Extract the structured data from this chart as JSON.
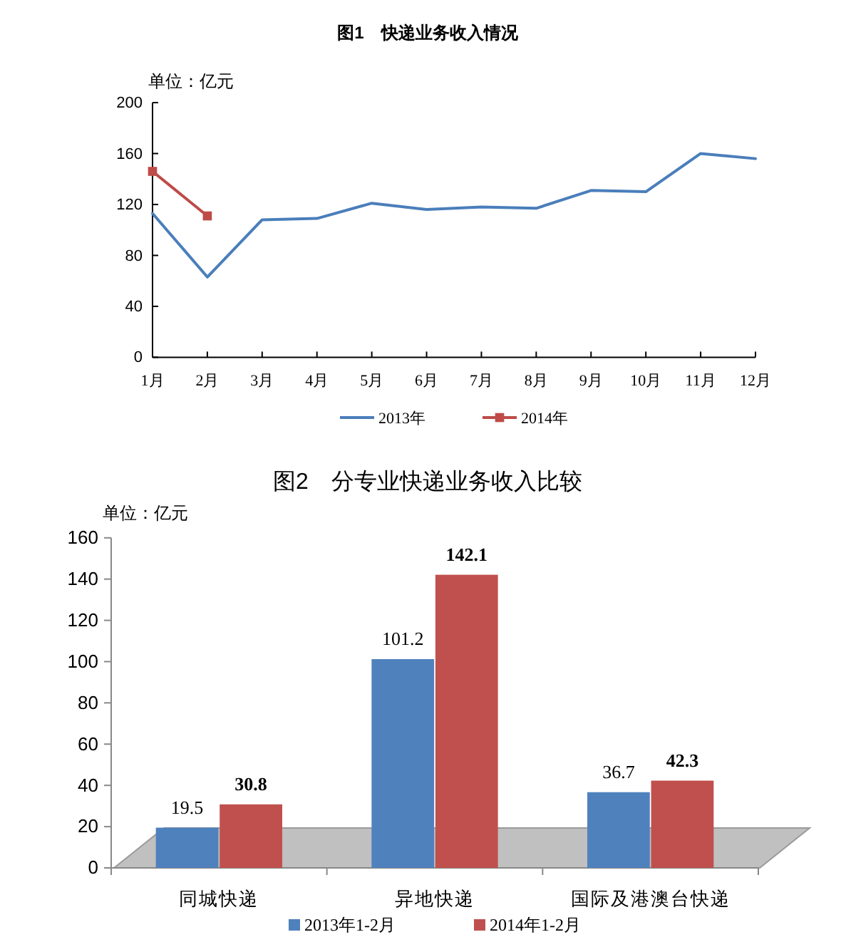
{
  "chart_data": [
    {
      "type": "line",
      "title": "图1　快递业务收入情况",
      "ylabel": "单位：亿元",
      "categories": [
        "1月",
        "2月",
        "3月",
        "4月",
        "5月",
        "6月",
        "7月",
        "8月",
        "9月",
        "10月",
        "11月",
        "12月"
      ],
      "series": [
        {
          "name": "2013年",
          "color": "#4a7ebb",
          "marker": "none",
          "values": [
            113,
            63,
            108,
            109,
            121,
            116,
            118,
            117,
            131,
            130,
            160,
            156
          ]
        },
        {
          "name": "2014年",
          "color": "#be4b48",
          "marker": "square",
          "values": [
            146,
            111,
            null,
            null,
            null,
            null,
            null,
            null,
            null,
            null,
            null,
            null
          ]
        }
      ],
      "ylim": [
        0,
        200
      ],
      "yticks": [
        0,
        40,
        80,
        120,
        160,
        200
      ],
      "legend": "bottom"
    },
    {
      "type": "bar",
      "title": "图2　分专业快递业务收入比较",
      "ylabel": "单位：亿元",
      "categories": [
        "同城快递",
        "异地快递",
        "国际及港澳台快递"
      ],
      "series": [
        {
          "name": "2013年1-2月",
          "color": "#4f81bd",
          "values": [
            19.5,
            101.2,
            36.7
          ]
        },
        {
          "name": "2014年1-2月",
          "color": "#c0504d",
          "values": [
            30.8,
            142.1,
            42.3
          ]
        }
      ],
      "ylim": [
        0,
        160
      ],
      "yticks": [
        0,
        20,
        40,
        60,
        80,
        100,
        120,
        140,
        160
      ],
      "data_labels": true,
      "legend": "bottom"
    }
  ]
}
